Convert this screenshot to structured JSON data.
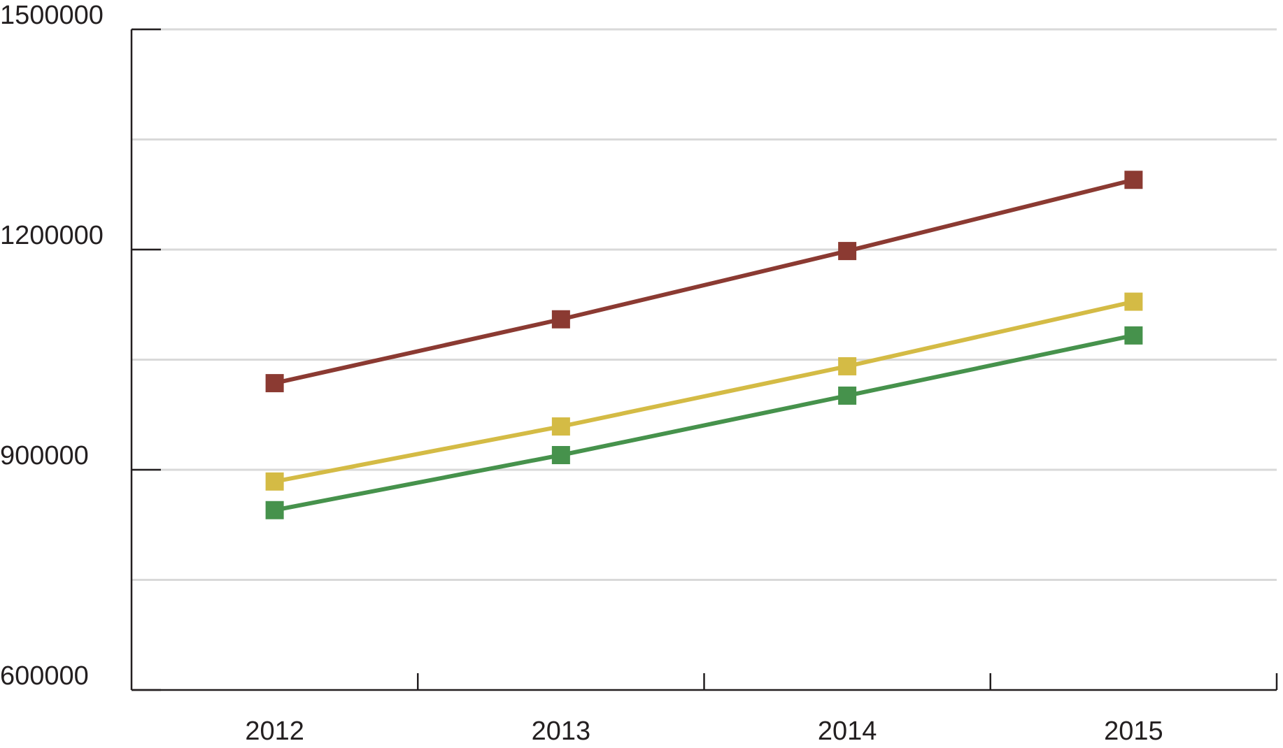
{
  "chart_data": {
    "type": "line",
    "categories": [
      "2012",
      "2013",
      "2014",
      "2015"
    ],
    "series": [
      {
        "color": "#8b3a32",
        "values": [
          1018000,
          1105000,
          1198000,
          1295000
        ]
      },
      {
        "color": "#d4bb45",
        "values": [
          884000,
          959000,
          1041000,
          1129000
        ]
      },
      {
        "color": "#46924c",
        "values": [
          845000,
          920000,
          1001000,
          1083000
        ]
      }
    ],
    "ylim": [
      600000,
      1500000
    ],
    "yticks": [
      600000,
      900000,
      1200000,
      1500000
    ],
    "minor_yticks": [
      750000,
      1050000,
      1350000
    ],
    "grid": true
  }
}
